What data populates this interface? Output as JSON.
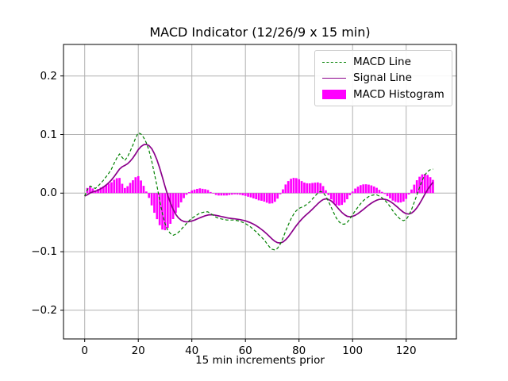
{
  "title": "MACD Indicator (12/26/9 x 15 min)",
  "x_axis": {
    "label": "15 min increments prior",
    "ticks": [
      0,
      20,
      40,
      60,
      80,
      100,
      120
    ],
    "lim": [
      -8,
      139
    ]
  },
  "y_axis": {
    "tick_labels": [
      "0.2",
      "0.1",
      "0.0",
      "−0.1",
      "−0.2"
    ],
    "tick_values": [
      0.2,
      0.1,
      0.0,
      -0.1,
      -0.2
    ],
    "lim": [
      -0.25,
      0.25
    ],
    "grid": true
  },
  "legend": {
    "position": "upper right",
    "items": [
      {
        "label": "MACD Line",
        "style": "dashed-line",
        "color": "#008000"
      },
      {
        "label": "Signal Line",
        "style": "solid-line",
        "color": "#8B008B"
      },
      {
        "label": "MACD Histogram",
        "style": "filled-bar",
        "color": "#FF00FF"
      }
    ]
  },
  "colors": {
    "background": "#ffffff",
    "grid": "#b0b0b0",
    "spine": "#000000",
    "macd_line": "#008000",
    "signal_line": "#8B008B",
    "histogram": "#FF00FF"
  },
  "chart_data": {
    "type": "line+bar",
    "title": "MACD Indicator (12/26/9 x 15 min)",
    "xlabel": "15 min increments prior",
    "ylabel": "",
    "x_start": 0,
    "x_step": 1,
    "xlim": [
      -8,
      139
    ],
    "ylim": [
      -0.25,
      0.25
    ],
    "grid": true,
    "legend_position": "upper right",
    "signal_ema_span": 9,
    "bar_width": 0.8,
    "series": [
      {
        "name": "MACD Line",
        "type": "line",
        "style": "dashed",
        "color": "#008000",
        "values": [
          -0.005,
          0.006,
          0.012,
          0.01,
          0.008,
          0.012,
          0.017,
          0.022,
          0.028,
          0.034,
          0.041,
          0.051,
          0.06,
          0.067,
          0.061,
          0.056,
          0.062,
          0.072,
          0.082,
          0.094,
          0.103,
          0.101,
          0.095,
          0.086,
          0.073,
          0.055,
          0.034,
          0.012,
          -0.012,
          -0.035,
          -0.052,
          -0.063,
          -0.069,
          -0.072,
          -0.07,
          -0.067,
          -0.062,
          -0.057,
          -0.052,
          -0.047,
          -0.043,
          -0.04,
          -0.037,
          -0.034,
          -0.033,
          -0.032,
          -0.032,
          -0.035,
          -0.038,
          -0.041,
          -0.043,
          -0.044,
          -0.045,
          -0.046,
          -0.046,
          -0.046,
          -0.046,
          -0.047,
          -0.048,
          -0.05,
          -0.052,
          -0.055,
          -0.058,
          -0.062,
          -0.066,
          -0.071,
          -0.075,
          -0.08,
          -0.086,
          -0.092,
          -0.096,
          -0.097,
          -0.094,
          -0.087,
          -0.077,
          -0.065,
          -0.054,
          -0.044,
          -0.036,
          -0.03,
          -0.026,
          -0.024,
          -0.022,
          -0.019,
          -0.015,
          -0.01,
          -0.005,
          0.0,
          0.003,
          0.001,
          -0.005,
          -0.014,
          -0.024,
          -0.034,
          -0.043,
          -0.049,
          -0.053,
          -0.053,
          -0.05,
          -0.044,
          -0.037,
          -0.03,
          -0.024,
          -0.018,
          -0.013,
          -0.009,
          -0.006,
          -0.004,
          -0.003,
          -0.003,
          -0.005,
          -0.008,
          -0.012,
          -0.017,
          -0.023,
          -0.03,
          -0.036,
          -0.041,
          -0.045,
          -0.047,
          -0.045,
          -0.038,
          -0.028,
          -0.016,
          -0.003,
          0.01,
          0.022,
          0.031,
          0.037,
          0.04,
          0.041
        ]
      },
      {
        "name": "Signal Line",
        "type": "line",
        "style": "solid",
        "color": "#8B008B",
        "derived": "EMA(span=9) of MACD Line"
      },
      {
        "name": "MACD Histogram",
        "type": "bar",
        "color": "#FF00FF",
        "derived": "MACD Line minus Signal Line"
      }
    ]
  }
}
